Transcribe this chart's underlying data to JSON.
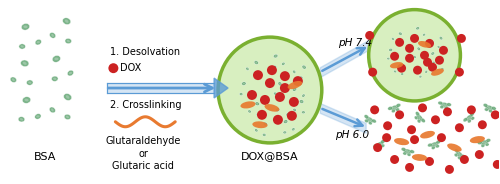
{
  "background_color": "#ffffff",
  "bsa_color": "#6aaa7a",
  "bsa_light": "#a8d4b0",
  "dox_color": "#cc2222",
  "drug_color": "#e87a30",
  "arrow_color": "#5b9bd5",
  "circle_fill": "#d8efc0",
  "circle_edge": "#7ab030",
  "text_color": "#000000",
  "label_bsa": "BSA",
  "label_doxbsa": "DOX@BSA",
  "label_step1": "1. Desolvation",
  "label_dox": "DOX",
  "label_step2": "2. Crosslinking",
  "label_glut": "Glutaraldehyde",
  "label_or": "or",
  "label_glutaric": "Glutaric acid",
  "label_ph74": "pH 7.4",
  "label_ph60": "pH 6.0",
  "figsize": [
    5.0,
    1.84
  ],
  "dpi": 100
}
